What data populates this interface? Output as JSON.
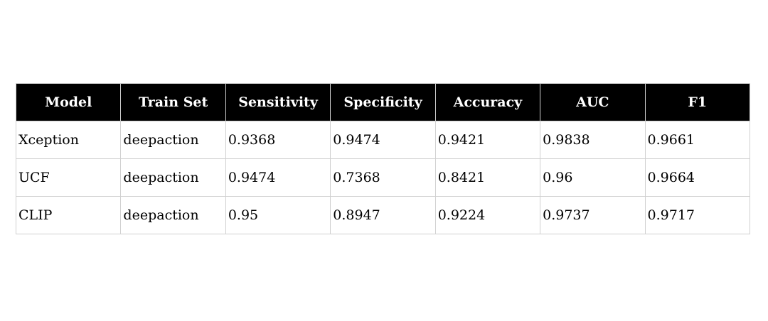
{
  "table": {
    "header": [
      "Model",
      "Train Set",
      "Sensitivity",
      "Specificity",
      "Accuracy",
      "AUC",
      "F1"
    ],
    "rows": [
      [
        "Xception",
        "deepaction",
        "0.9368",
        "0.9474",
        "0.9421",
        "0.9838",
        "0.9661"
      ],
      [
        "UCF",
        "deepaction",
        "0.9474",
        "0.7368",
        "0.8421",
        "0.96",
        "0.9664"
      ],
      [
        "CLIP",
        "deepaction",
        "0.95",
        "0.8947",
        "0.9224",
        "0.9737",
        "0.9717"
      ]
    ]
  }
}
